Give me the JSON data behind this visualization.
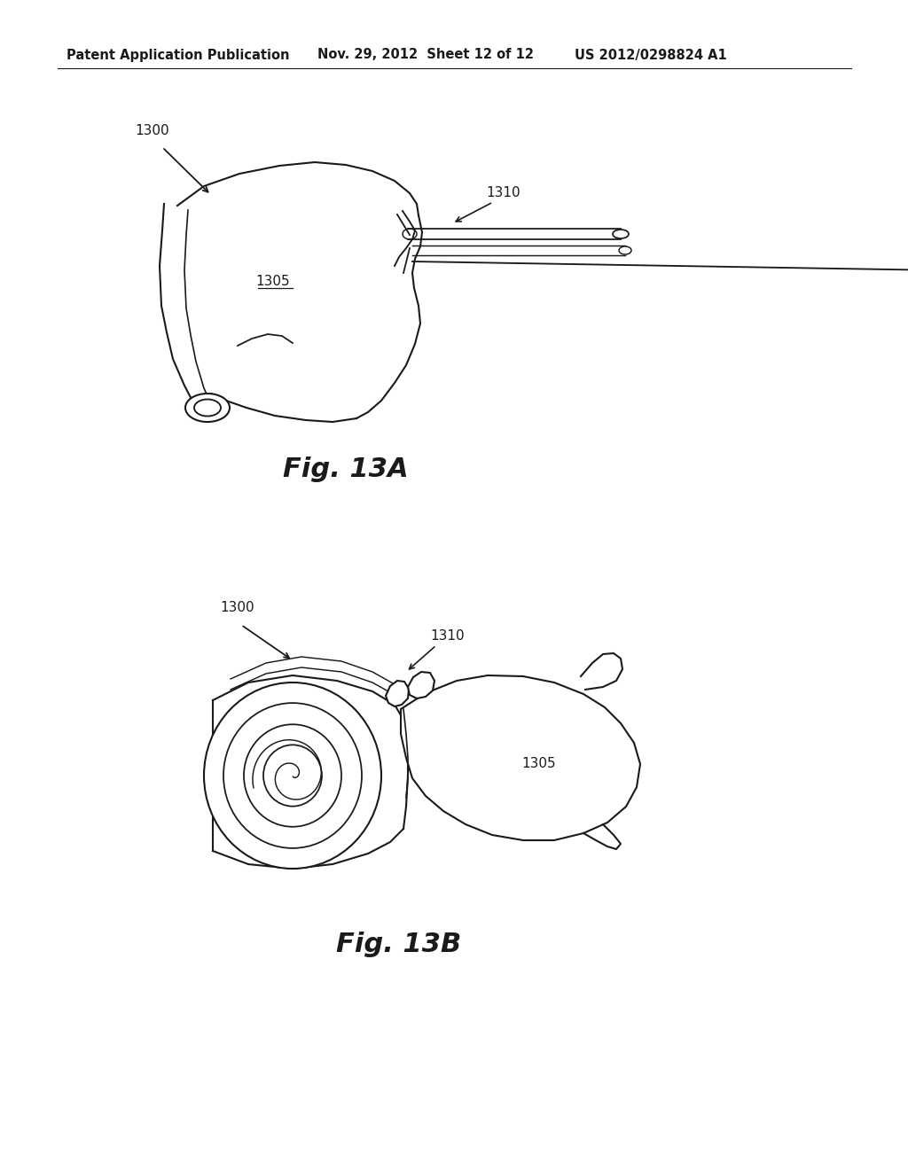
{
  "background_color": "#ffffff",
  "header_left": "Patent Application Publication",
  "header_mid": "Nov. 29, 2012  Sheet 12 of 12",
  "header_right": "US 2012/0298824 A1",
  "header_fontsize": 10.5,
  "fig13a_label": "Fig. 13A",
  "fig13b_label": "Fig. 13B",
  "label_1300_a": "1300",
  "label_1305_a": "1305",
  "label_1310_a": "1310",
  "label_1300_b": "1300",
  "label_1305_b": "1305",
  "label_1310_b": "1310",
  "line_color": "#1a1a1a",
  "line_width": 1.5,
  "fig_label_fontsize": 22
}
